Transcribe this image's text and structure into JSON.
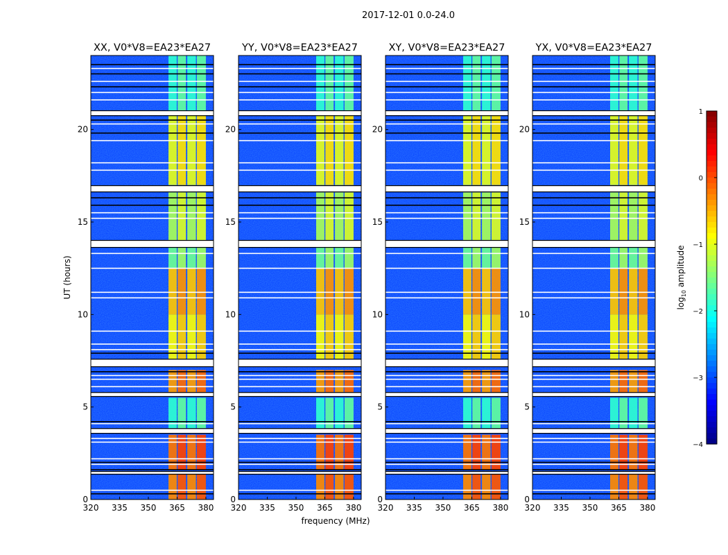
{
  "chart_data": {
    "type": "heatmap",
    "title": "2017-12-01 0.0-24.0",
    "xlabel": "frequency (MHz)",
    "ylabel": "UT (hours)",
    "xlim": [
      320,
      384
    ],
    "ylim": [
      0,
      24
    ],
    "xticks": [
      "320",
      "335",
      "350",
      "365",
      "380"
    ],
    "xtick_values": [
      320,
      335,
      350,
      365,
      380
    ],
    "yticks": [
      "0",
      "5",
      "10",
      "15",
      "20"
    ],
    "ytick_values": [
      0,
      5,
      10,
      15,
      20
    ],
    "panels": [
      {
        "title": "XX, V0*V8=EA23*EA27"
      },
      {
        "title": "YY, V0*V8=EA23*EA27"
      },
      {
        "title": "XY, V0*V8=EA23*EA27"
      },
      {
        "title": "YX, V0*V8=EA23*EA27"
      }
    ],
    "colorbar": {
      "label_main": "log",
      "label_sub": "10",
      "label_rest": " amplitude",
      "range": [
        -4,
        1
      ],
      "ticks": [
        "1",
        "0",
        "−1",
        "−2",
        "−3",
        "−4"
      ],
      "tick_values": [
        1,
        0,
        -1,
        -2,
        -3,
        -4
      ],
      "colormap": "jet"
    },
    "background_level": -3.1,
    "band_subchannels_mhz": [
      [
        360.5,
        364.8
      ],
      [
        365.3,
        369.6
      ],
      [
        370.3,
        374.8
      ],
      [
        375.3,
        380.0
      ]
    ],
    "time_segments": [
      {
        "start": 0.0,
        "end": 1.4,
        "level": -0.2
      },
      {
        "start": 1.6,
        "end": 3.5,
        "level": -0.1
      },
      {
        "start": 3.85,
        "end": 5.5,
        "level": -1.8
      },
      {
        "start": 5.75,
        "end": 7.0,
        "level": -0.3
      },
      {
        "start": 7.6,
        "end": 10.0,
        "level": -0.8
      },
      {
        "start": 10.0,
        "end": 12.5,
        "level": -0.5
      },
      {
        "start": 12.5,
        "end": 13.65,
        "level": -1.5
      },
      {
        "start": 14.0,
        "end": 16.6,
        "level": -1.2
      },
      {
        "start": 17.0,
        "end": 20.77,
        "level": -0.9
      },
      {
        "start": 21.0,
        "end": 24.0,
        "level": -1.8
      }
    ],
    "flagged_bands_hours": [
      [
        1.39,
        1.5
      ],
      [
        3.6,
        3.82
      ],
      [
        5.59,
        5.77
      ],
      [
        7.2,
        7.57
      ],
      [
        13.65,
        13.99
      ],
      [
        16.65,
        16.95
      ],
      [
        20.77,
        21.0
      ]
    ],
    "flagged_lines_hours": [
      0.5,
      1.9,
      2.2,
      3.1,
      3.3,
      4.1,
      6.1,
      6.5,
      6.7,
      8.1,
      8.4,
      9.1,
      10.9,
      11.2,
      12.5,
      13.3,
      15.2,
      15.5,
      17.8,
      18.2,
      19.4,
      20.3,
      21.6,
      22.0,
      22.6,
      23.3
    ],
    "dark_lines_hours": [
      0.3,
      1.6,
      2.0,
      4.2,
      6.9,
      7.9,
      15.9,
      16.3,
      19.8,
      20.5,
      22.3,
      23.0,
      23.5
    ]
  }
}
